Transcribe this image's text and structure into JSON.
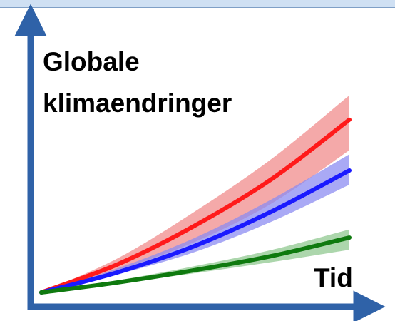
{
  "chart_data": {
    "type": "line",
    "title": "",
    "ylabel": "Globale\nklimaendringer",
    "xlabel": "Tid",
    "x_range": [
      0,
      1
    ],
    "y_range": [
      0,
      1
    ],
    "grid": false,
    "legend": "none",
    "series": [
      {
        "color": "#ff1a1a",
        "band_color": "#f08c8c",
        "x": [
          0,
          0.25,
          0.5,
          0.75,
          1.0
        ],
        "values": [
          0.0,
          0.14,
          0.33,
          0.56,
          0.85
        ],
        "lower": [
          0.0,
          0.11,
          0.25,
          0.44,
          0.7
        ],
        "upper": [
          0.0,
          0.17,
          0.4,
          0.66,
          0.97
        ]
      },
      {
        "color": "#1a1aff",
        "band_color": "#8c8cf2",
        "x": [
          0,
          0.25,
          0.5,
          0.75,
          1.0
        ],
        "values": [
          0.0,
          0.1,
          0.23,
          0.4,
          0.6
        ],
        "lower": [
          0.0,
          0.09,
          0.2,
          0.35,
          0.53
        ],
        "upper": [
          0.0,
          0.12,
          0.27,
          0.46,
          0.68
        ]
      },
      {
        "color": "#0f7a0f",
        "band_color": "#90c890",
        "x": [
          0,
          0.25,
          0.5,
          0.75,
          1.0
        ],
        "values": [
          0.0,
          0.05,
          0.11,
          0.18,
          0.27
        ],
        "lower": [
          0.0,
          0.045,
          0.095,
          0.15,
          0.21
        ],
        "upper": [
          0.0,
          0.06,
          0.13,
          0.21,
          0.31
        ]
      }
    ]
  }
}
